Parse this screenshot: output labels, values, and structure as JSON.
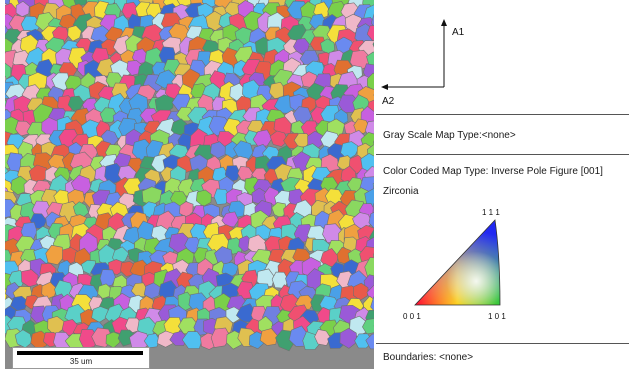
{
  "scale_bar": {
    "label": "35 um"
  },
  "axes": {
    "a1": "A1",
    "a2": "A2"
  },
  "legend": {
    "gray_scale": "Gray Scale Map Type:<none>",
    "color_coded": "Color Coded Map Type: Inverse Pole Figure [001]",
    "phase": "Zirconia",
    "boundaries": "Boundaries: <none>"
  },
  "ipf": {
    "corner_111": "1 1 1",
    "corner_001": "0 0 1",
    "corner_101": "1 0 1"
  }
}
